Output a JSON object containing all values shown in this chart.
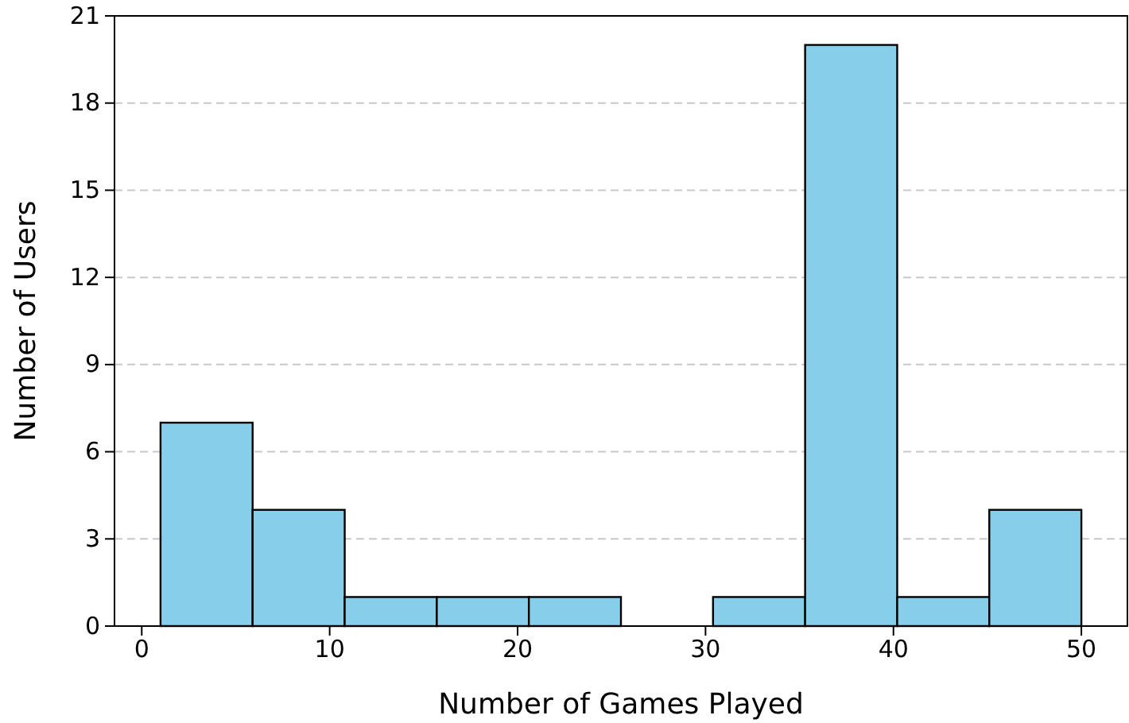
{
  "chart_data": {
    "type": "histogram",
    "xlabel": "Number of Games Played",
    "ylabel": "Number of Users",
    "bins": [
      1,
      5.9,
      10.8,
      15.7,
      20.6,
      25.5,
      30.4,
      35.3,
      40.2,
      45.1,
      50
    ],
    "values": [
      7,
      4,
      1,
      1,
      1,
      0,
      1,
      20,
      1,
      4
    ],
    "color": "#87ceeb",
    "xlim": [
      -1.45,
      52.45
    ],
    "xticks": [
      0,
      10,
      20,
      30,
      40,
      50
    ],
    "ylim": [
      0,
      21
    ],
    "yticks": [
      0,
      3,
      6,
      9,
      12,
      15,
      18,
      21
    ],
    "grid": "y"
  }
}
